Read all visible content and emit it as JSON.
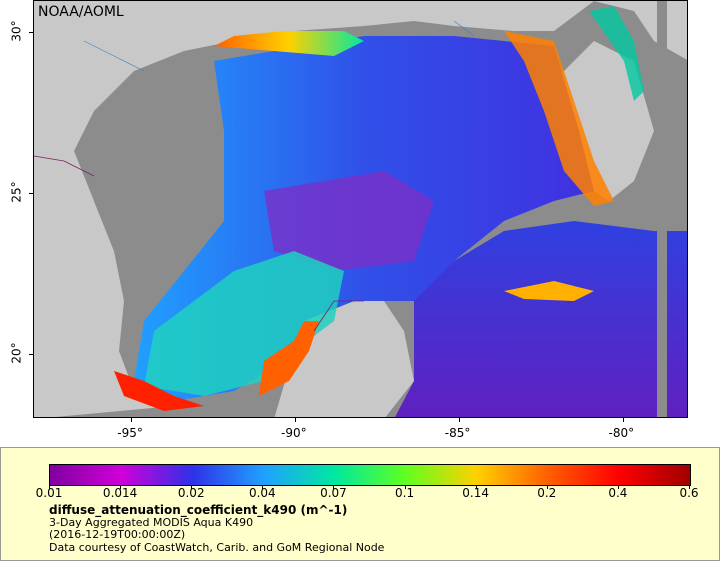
{
  "credit": "NOAA/AOML",
  "x_axis": {
    "ticks": [
      {
        "value": -95,
        "label": "-95°"
      },
      {
        "value": -90,
        "label": "-90°"
      },
      {
        "value": -85,
        "label": "-85°"
      },
      {
        "value": -80,
        "label": "-80°"
      }
    ],
    "range": [
      -98.0,
      -78.0
    ]
  },
  "y_axis": {
    "ticks": [
      {
        "value": 30,
        "label": "30°"
      },
      {
        "value": 25,
        "label": "25°"
      },
      {
        "value": 20,
        "label": "20°"
      }
    ],
    "range": [
      18.0,
      31.0
    ]
  },
  "colorbar": {
    "labels": [
      "0.01",
      "0.014",
      "0.02",
      "0.04",
      "0.07",
      "0.1",
      "0.14",
      "0.2",
      "0.4",
      "0.6"
    ],
    "colors": [
      "#7f00a0",
      "#d000d8",
      "#3030e8",
      "#20a0ff",
      "#00e8a0",
      "#60ff20",
      "#ffd000",
      "#ff6000",
      "#ff0000",
      "#a00000"
    ]
  },
  "legend": {
    "variable": "diffuse_attenuation_coefficient_k490 (m^-1)",
    "line1": "3-Day Aggregated MODIS Aqua K490",
    "line2": "(2016-12-19T00:00:00Z)",
    "line3": "Data courtesy of CoastWatch, Carib. and GoM Regional Node"
  },
  "colors": {
    "land": "#c8c8c8",
    "no_data": "#8c8c8c",
    "legend_bg": "#ffffcc"
  }
}
